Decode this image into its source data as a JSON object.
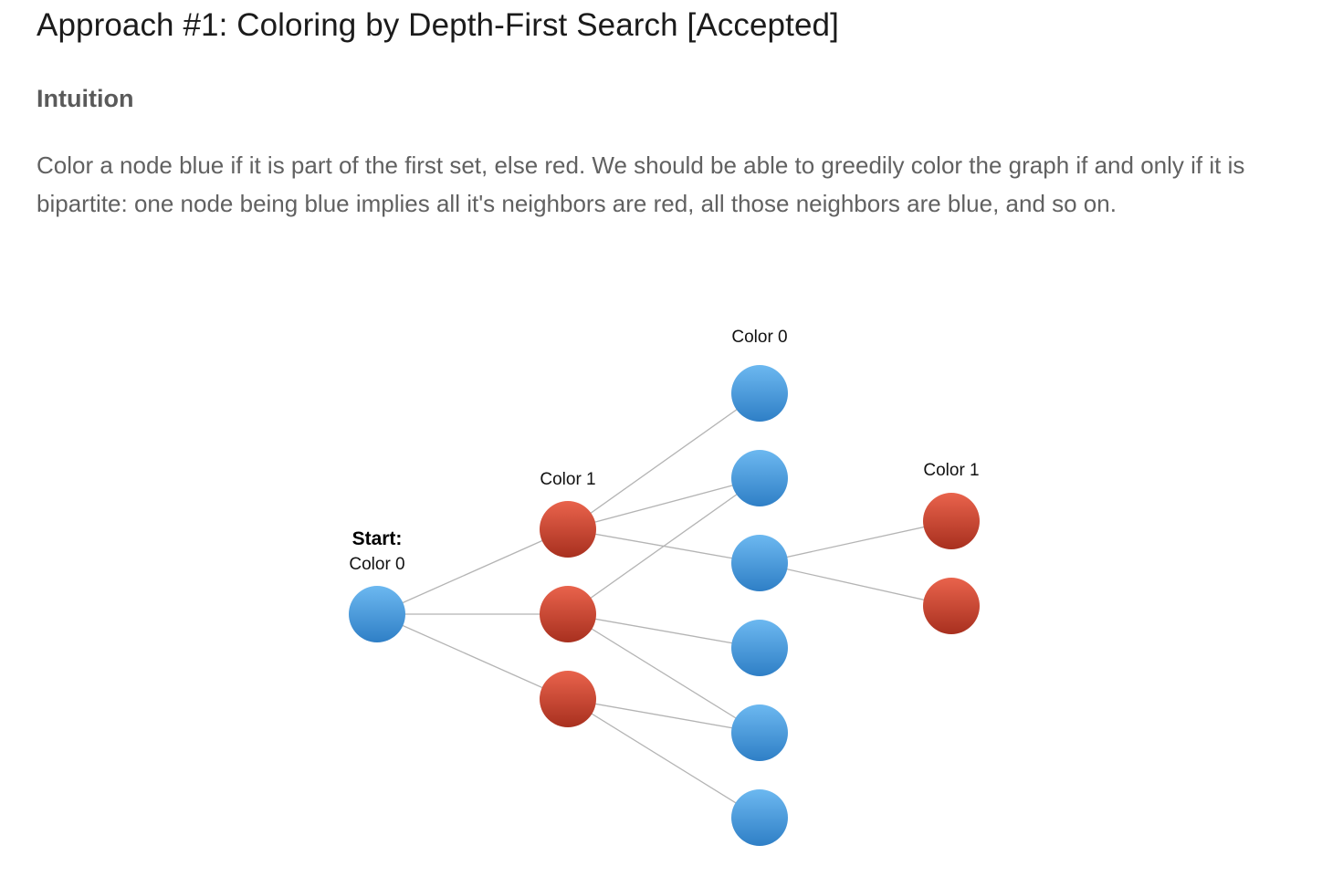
{
  "article": {
    "title": "Approach #1: Coloring by Depth-First Search [Accepted]",
    "subheading": "Intuition",
    "paragraph": "Color a node blue if it is part of the first set, else red. We should be able to greedily color the graph if and only if it is bipartite: one node being blue implies all it's neighbors are red, all those neighbors are blue, and so on."
  },
  "diagram": {
    "colors": {
      "blue": "#4d9fe0",
      "red": "#c94530",
      "edge": "#b4b4b4"
    },
    "labels": {
      "start": "Start:",
      "start_color": "Color 0",
      "col2": "Color 1",
      "col3": "Color 0",
      "col4": "Color 1"
    },
    "nodes": [
      {
        "id": "s",
        "color": "blue"
      },
      {
        "id": "r1",
        "color": "red"
      },
      {
        "id": "r2",
        "color": "red"
      },
      {
        "id": "r3",
        "color": "red"
      },
      {
        "id": "b1",
        "color": "blue"
      },
      {
        "id": "b2",
        "color": "blue"
      },
      {
        "id": "b3",
        "color": "blue"
      },
      {
        "id": "b4",
        "color": "blue"
      },
      {
        "id": "b5",
        "color": "blue"
      },
      {
        "id": "b6",
        "color": "blue"
      },
      {
        "id": "e1",
        "color": "red"
      },
      {
        "id": "e2",
        "color": "red"
      }
    ],
    "edges": [
      [
        "s",
        "r1"
      ],
      [
        "s",
        "r2"
      ],
      [
        "s",
        "r3"
      ],
      [
        "r1",
        "b1"
      ],
      [
        "r1",
        "b2"
      ],
      [
        "r1",
        "b3"
      ],
      [
        "r2",
        "b2"
      ],
      [
        "r2",
        "b4"
      ],
      [
        "r2",
        "b5"
      ],
      [
        "r3",
        "b5"
      ],
      [
        "r3",
        "b6"
      ],
      [
        "b3",
        "e1"
      ],
      [
        "b3",
        "e2"
      ]
    ]
  }
}
